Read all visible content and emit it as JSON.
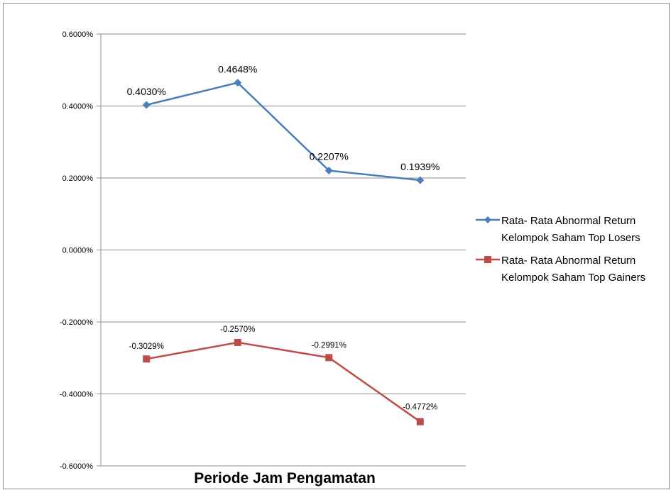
{
  "chart_data": {
    "type": "line",
    "title": "",
    "xlabel": "Periode Jam Pengamatan",
    "ylabel": "",
    "ylim": [
      -0.6,
      0.6
    ],
    "yticks": [
      0.6,
      0.4,
      0.2,
      0.0,
      -0.2,
      -0.4,
      -0.6
    ],
    "ytick_labels": [
      "0.6000%",
      "0.4000%",
      "0.2000%",
      "0.0000%",
      "-0.2000%",
      "-0.4000%",
      "-0.6000%"
    ],
    "categories": [
      "",
      "",
      "",
      ""
    ],
    "grid": "horizontal",
    "legend_position": "right",
    "series": [
      {
        "name": "Rata- Rata Abnormal Return Kelompok Saham Top Losers",
        "legend_lines": [
          "Rata- Rata Abnormal Return",
          "Kelompok Saham Top Losers"
        ],
        "color": "#4a7ebb",
        "marker": "diamond",
        "values": [
          0.403,
          0.4648,
          0.2207,
          0.1939
        ],
        "labels": [
          "0.4030%",
          "0.4648%",
          "0.2207%",
          "0.1939%"
        ]
      },
      {
        "name": "Rata- Rata Abnormal Return Kelompok Saham Top Gainers",
        "legend_lines": [
          "Rata- Rata Abnormal Return",
          "Kelompok Saham Top Gainers"
        ],
        "color": "#be4b48",
        "marker": "square",
        "values": [
          -0.3029,
          -0.257,
          -0.2991,
          -0.4772
        ],
        "labels": [
          "-0.3029%",
          "-0.2570%",
          "-0.2991%",
          "-0.4772%"
        ]
      }
    ],
    "colors": {
      "gridline": "#8c8c8c",
      "axis": "#8c8c8c",
      "frame": "#8c8c8c"
    }
  }
}
